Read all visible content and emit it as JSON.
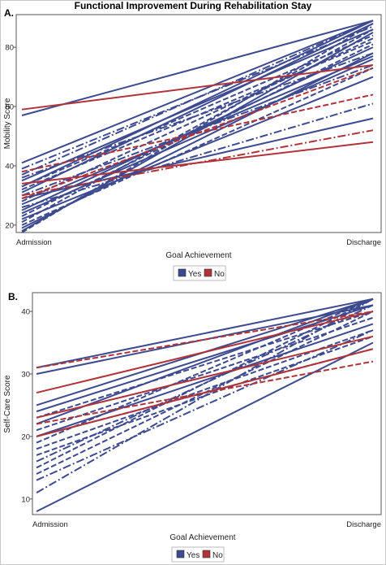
{
  "title": "Functional Improvement During Rehabilitation Stay",
  "colors": {
    "yes": "#3d4a8f",
    "no": "#b0333a",
    "axis": "#555555",
    "legend_border": "#bbbbbb"
  },
  "chart_data": [
    {
      "type": "line",
      "panel": "A.",
      "xlabel": "Goal Achievement",
      "ylabel": "Mobility Score",
      "categories": [
        "Admission",
        "Discharge"
      ],
      "ylim": [
        17.5,
        91
      ],
      "yticks": [
        20,
        40,
        60,
        80
      ],
      "grid": false,
      "legend": {
        "position": "bottom",
        "entries": [
          {
            "key": "yes",
            "label": "Yes"
          },
          {
            "key": "no",
            "label": "No"
          }
        ]
      },
      "series": [
        {
          "group": "yes",
          "dash": "solid",
          "values": [
            57,
            89
          ]
        },
        {
          "group": "yes",
          "dash": "solid",
          "values": [
            41,
            89
          ]
        },
        {
          "group": "yes",
          "dash": "dashdot",
          "values": [
            39,
            87
          ]
        },
        {
          "group": "yes",
          "dash": "dashdot",
          "values": [
            37,
            89
          ]
        },
        {
          "group": "yes",
          "dash": "dashdot",
          "values": [
            36,
            78
          ]
        },
        {
          "group": "yes",
          "dash": "solid",
          "values": [
            35,
            86
          ]
        },
        {
          "group": "yes",
          "dash": "dashed",
          "values": [
            33,
            84
          ]
        },
        {
          "group": "yes",
          "dash": "solid",
          "values": [
            33,
            89
          ]
        },
        {
          "group": "yes",
          "dash": "dashed",
          "values": [
            32,
            82
          ]
        },
        {
          "group": "yes",
          "dash": "solid",
          "values": [
            31,
            88
          ]
        },
        {
          "group": "yes",
          "dash": "dashdot",
          "values": [
            30,
            74
          ]
        },
        {
          "group": "yes",
          "dash": "solid",
          "values": [
            29,
            56
          ]
        },
        {
          "group": "yes",
          "dash": "dashed",
          "values": [
            28,
            83
          ]
        },
        {
          "group": "yes",
          "dash": "solid",
          "values": [
            27,
            77
          ]
        },
        {
          "group": "yes",
          "dash": "dashdot",
          "values": [
            26,
            61
          ]
        },
        {
          "group": "yes",
          "dash": "solid",
          "values": [
            25,
            80
          ]
        },
        {
          "group": "yes",
          "dash": "solid",
          "values": [
            24,
            76
          ]
        },
        {
          "group": "yes",
          "dash": "dashed",
          "values": [
            23,
            81
          ]
        },
        {
          "group": "yes",
          "dash": "solid",
          "values": [
            22,
            70
          ]
        },
        {
          "group": "yes",
          "dash": "dashed",
          "values": [
            21,
            86
          ]
        },
        {
          "group": "yes",
          "dash": "dashed",
          "values": [
            20,
            73
          ]
        },
        {
          "group": "yes",
          "dash": "solid",
          "values": [
            19,
            78
          ]
        },
        {
          "group": "yes",
          "dash": "solid",
          "values": [
            18,
            85
          ]
        },
        {
          "group": "yes",
          "dash": "dashed",
          "values": [
            17.5,
            88
          ]
        },
        {
          "group": "no",
          "dash": "solid",
          "values": [
            59,
            74
          ]
        },
        {
          "group": "no",
          "dash": "dashed",
          "values": [
            38,
            64
          ]
        },
        {
          "group": "no",
          "dash": "solid",
          "values": [
            34,
            48
          ]
        },
        {
          "group": "no",
          "dash": "dashdot",
          "values": [
            30,
            52
          ]
        },
        {
          "group": "no",
          "dash": "dashed",
          "values": [
            29,
            73
          ]
        }
      ]
    },
    {
      "type": "line",
      "panel": "B.",
      "xlabel": "Goal Achievement",
      "ylabel": "Self-Care Score",
      "categories": [
        "Admission",
        "Discharge"
      ],
      "ylim": [
        7.5,
        43
      ],
      "yticks": [
        10,
        20,
        30,
        40
      ],
      "grid": false,
      "legend": {
        "position": "bottom",
        "entries": [
          {
            "key": "yes",
            "label": "Yes"
          },
          {
            "key": "no",
            "label": "No"
          }
        ]
      },
      "series": [
        {
          "group": "yes",
          "dash": "solid",
          "values": [
            31,
            42
          ]
        },
        {
          "group": "yes",
          "dash": "solid",
          "values": [
            30,
            41
          ]
        },
        {
          "group": "yes",
          "dash": "solid",
          "values": [
            25,
            42
          ]
        },
        {
          "group": "yes",
          "dash": "solid",
          "values": [
            24,
            41
          ]
        },
        {
          "group": "yes",
          "dash": "dashed",
          "values": [
            23,
            40
          ]
        },
        {
          "group": "yes",
          "dash": "solid",
          "values": [
            22,
            42
          ]
        },
        {
          "group": "yes",
          "dash": "dashed",
          "values": [
            21,
            39
          ]
        },
        {
          "group": "yes",
          "dash": "solid",
          "values": [
            20,
            38
          ]
        },
        {
          "group": "yes",
          "dash": "dashed",
          "values": [
            19,
            42
          ]
        },
        {
          "group": "yes",
          "dash": "dashed",
          "values": [
            18,
            37
          ]
        },
        {
          "group": "yes",
          "dash": "dashed",
          "values": [
            17,
            36
          ]
        },
        {
          "group": "yes",
          "dash": "dashdot",
          "values": [
            16,
            41
          ]
        },
        {
          "group": "yes",
          "dash": "dashed",
          "values": [
            15,
            42
          ]
        },
        {
          "group": "yes",
          "dash": "dashed",
          "values": [
            14,
            40
          ]
        },
        {
          "group": "yes",
          "dash": "dashdot",
          "values": [
            13,
            37
          ]
        },
        {
          "group": "yes",
          "dash": "dashdot",
          "values": [
            11,
            42
          ]
        },
        {
          "group": "yes",
          "dash": "solid",
          "values": [
            8,
            35
          ]
        },
        {
          "group": "yes",
          "dash": "dashed",
          "values": [
            20,
            34
          ]
        },
        {
          "group": "no",
          "dash": "dashed",
          "values": [
            31,
            40
          ]
        },
        {
          "group": "no",
          "dash": "solid",
          "values": [
            27,
            40
          ]
        },
        {
          "group": "no",
          "dash": "solid",
          "values": [
            23,
            36
          ]
        },
        {
          "group": "no",
          "dash": "dashed",
          "values": [
            22,
            32
          ]
        },
        {
          "group": "no",
          "dash": "solid",
          "values": [
            20,
            34
          ]
        }
      ]
    }
  ]
}
